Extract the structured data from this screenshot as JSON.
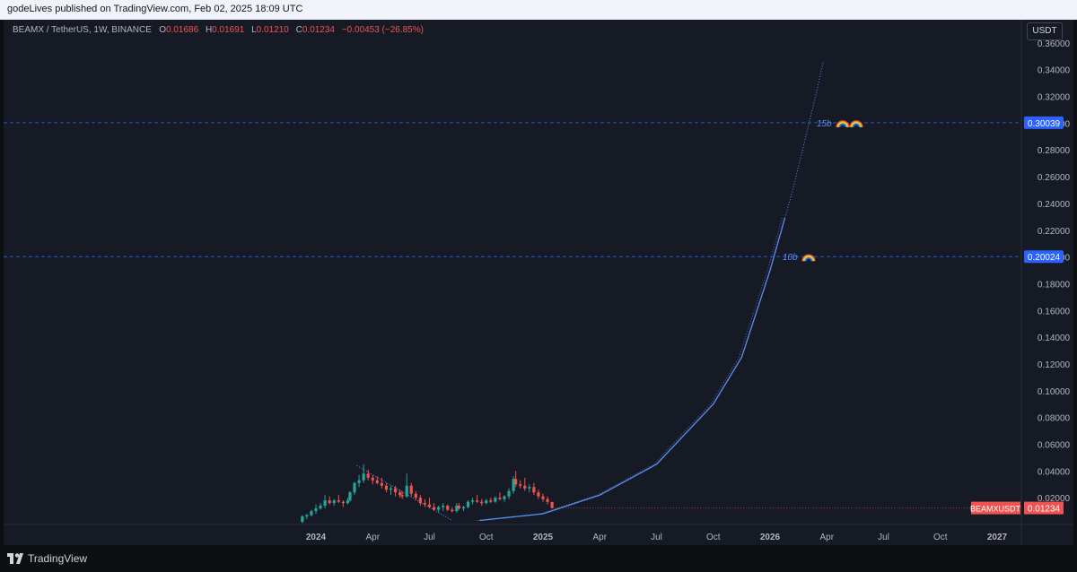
{
  "header": {
    "publish_text": "godeLives published on TradingView.com, Feb 02, 2025 18:09 UTC"
  },
  "legend": {
    "symbol": "BEAMX / TetherUS, 1W, BINANCE",
    "open_label": "O",
    "open": "0.01686",
    "high_label": "H",
    "high": "0.01691",
    "low_label": "L",
    "low": "0.01210",
    "close_label": "C",
    "close": "0.01234",
    "change": "−0.00453 (−26.85%)"
  },
  "currency_button": "USDT",
  "footer": {
    "brand": "TradingView"
  },
  "colors": {
    "up": "#26a69a",
    "down": "#ef5350",
    "line": "#5b8ff0",
    "badge": "#2962ff"
  },
  "chart_data": {
    "type": "candlestick",
    "title": "BEAMX / TetherUS, 1W, BINANCE",
    "ylim": [
      0.0,
      0.375
    ],
    "y_ticks": [
      "0.02000",
      "0.04000",
      "0.06000",
      "0.08000",
      "0.10000",
      "0.12000",
      "0.14000",
      "0.16000",
      "0.18000",
      "0.20000",
      "0.22000",
      "0.24000",
      "0.26000",
      "0.28000",
      "0.30000",
      "0.32000",
      "0.34000",
      "0.36000"
    ],
    "x_ticks": [
      {
        "label": "2024",
        "year_frac": 2024.0
      },
      {
        "label": "Apr",
        "year_frac": 2024.25
      },
      {
        "label": "Jul",
        "year_frac": 2024.5
      },
      {
        "label": "Oct",
        "year_frac": 2024.75
      },
      {
        "label": "2025",
        "year_frac": 2025.0
      },
      {
        "label": "Apr",
        "year_frac": 2025.25
      },
      {
        "label": "Jul",
        "year_frac": 2025.5
      },
      {
        "label": "Oct",
        "year_frac": 2025.75
      },
      {
        "label": "2026",
        "year_frac": 2026.0
      },
      {
        "label": "Apr",
        "year_frac": 2026.25
      },
      {
        "label": "Jul",
        "year_frac": 2026.5
      },
      {
        "label": "Oct",
        "year_frac": 2026.75
      },
      {
        "label": "2027",
        "year_frac": 2027.0
      }
    ],
    "horizontal_levels": [
      {
        "value": 0.30039,
        "label": "0.30039",
        "note": "15b"
      },
      {
        "value": 0.20024,
        "label": "0.20024",
        "note": "10b"
      }
    ],
    "last_price": {
      "symbol": "BEAMXUSDT",
      "value": 0.01234,
      "label": "0.01234"
    },
    "parabolic_curve": {
      "points": [
        [
          2024.72,
          0.003
        ],
        [
          2025.0,
          0.008
        ],
        [
          2025.25,
          0.022
        ],
        [
          2025.5,
          0.045
        ],
        [
          2025.75,
          0.09
        ],
        [
          2025.875,
          0.125
        ],
        [
          2026.0,
          0.19
        ],
        [
          2026.1,
          0.25
        ],
        [
          2026.2,
          0.32
        ],
        [
          2026.24,
          0.35
        ]
      ]
    },
    "downtrend_line": [
      [
        2024.18,
        0.044
      ],
      [
        2024.6,
        0.003
      ]
    ],
    "candles": [
      [
        2023.94,
        0.002,
        0.007,
        0.001,
        0.006
      ],
      [
        2023.96,
        0.006,
        0.008,
        0.004,
        0.007
      ],
      [
        2023.98,
        0.007,
        0.011,
        0.006,
        0.01
      ],
      [
        2024.0,
        0.01,
        0.015,
        0.008,
        0.012
      ],
      [
        2024.02,
        0.012,
        0.016,
        0.011,
        0.014
      ],
      [
        2024.04,
        0.014,
        0.022,
        0.012,
        0.018
      ],
      [
        2024.06,
        0.018,
        0.021,
        0.015,
        0.016
      ],
      [
        2024.08,
        0.016,
        0.019,
        0.014,
        0.018
      ],
      [
        2024.1,
        0.018,
        0.022,
        0.016,
        0.017
      ],
      [
        2024.12,
        0.017,
        0.018,
        0.013,
        0.016
      ],
      [
        2024.14,
        0.016,
        0.02,
        0.015,
        0.018
      ],
      [
        2024.15,
        0.018,
        0.025,
        0.017,
        0.024
      ],
      [
        2024.17,
        0.024,
        0.032,
        0.022,
        0.031
      ],
      [
        2024.19,
        0.031,
        0.037,
        0.028,
        0.033
      ],
      [
        2024.21,
        0.033,
        0.045,
        0.031,
        0.038
      ],
      [
        2024.23,
        0.038,
        0.041,
        0.033,
        0.035
      ],
      [
        2024.25,
        0.035,
        0.037,
        0.03,
        0.033
      ],
      [
        2024.27,
        0.033,
        0.036,
        0.03,
        0.031
      ],
      [
        2024.29,
        0.031,
        0.035,
        0.027,
        0.029
      ],
      [
        2024.31,
        0.029,
        0.031,
        0.024,
        0.026
      ],
      [
        2024.33,
        0.026,
        0.029,
        0.022,
        0.027
      ],
      [
        2024.35,
        0.027,
        0.029,
        0.021,
        0.024
      ],
      [
        2024.37,
        0.024,
        0.026,
        0.02,
        0.022
      ],
      [
        2024.38,
        0.022,
        0.025,
        0.019,
        0.021
      ],
      [
        2024.4,
        0.021,
        0.038,
        0.02,
        0.029
      ],
      [
        2024.42,
        0.029,
        0.031,
        0.021,
        0.023
      ],
      [
        2024.44,
        0.023,
        0.025,
        0.018,
        0.02
      ],
      [
        2024.46,
        0.02,
        0.022,
        0.014,
        0.016
      ],
      [
        2024.48,
        0.016,
        0.019,
        0.013,
        0.015
      ],
      [
        2024.5,
        0.015,
        0.02,
        0.012,
        0.013
      ],
      [
        2024.52,
        0.013,
        0.016,
        0.01,
        0.011
      ],
      [
        2024.54,
        0.011,
        0.014,
        0.009,
        0.013
      ],
      [
        2024.56,
        0.013,
        0.016,
        0.01,
        0.014
      ],
      [
        2024.58,
        0.014,
        0.015,
        0.01,
        0.011
      ],
      [
        2024.6,
        0.011,
        0.013,
        0.009,
        0.01
      ],
      [
        2024.62,
        0.01,
        0.016,
        0.009,
        0.014
      ],
      [
        2024.63,
        0.014,
        0.016,
        0.011,
        0.012
      ],
      [
        2024.65,
        0.012,
        0.014,
        0.01,
        0.013
      ],
      [
        2024.67,
        0.013,
        0.018,
        0.012,
        0.017
      ],
      [
        2024.69,
        0.017,
        0.02,
        0.015,
        0.018
      ],
      [
        2024.71,
        0.018,
        0.022,
        0.016,
        0.017
      ],
      [
        2024.73,
        0.017,
        0.019,
        0.014,
        0.016
      ],
      [
        2024.75,
        0.016,
        0.019,
        0.015,
        0.018
      ],
      [
        2024.77,
        0.018,
        0.02,
        0.016,
        0.017
      ],
      [
        2024.79,
        0.017,
        0.021,
        0.016,
        0.02
      ],
      [
        2024.81,
        0.02,
        0.024,
        0.018,
        0.019
      ],
      [
        2024.83,
        0.019,
        0.022,
        0.017,
        0.021
      ],
      [
        2024.85,
        0.021,
        0.027,
        0.019,
        0.025
      ],
      [
        2024.87,
        0.025,
        0.036,
        0.023,
        0.034
      ],
      [
        2024.88,
        0.034,
        0.04,
        0.028,
        0.03
      ],
      [
        2024.9,
        0.03,
        0.033,
        0.027,
        0.029
      ],
      [
        2024.92,
        0.029,
        0.035,
        0.025,
        0.027
      ],
      [
        2024.94,
        0.027,
        0.03,
        0.024,
        0.028
      ],
      [
        2024.96,
        0.028,
        0.031,
        0.022,
        0.024
      ],
      [
        2024.98,
        0.024,
        0.026,
        0.019,
        0.021
      ],
      [
        2025.0,
        0.021,
        0.023,
        0.017,
        0.019
      ],
      [
        2025.02,
        0.019,
        0.021,
        0.015,
        0.01686
      ],
      [
        2025.04,
        0.01686,
        0.01691,
        0.0121,
        0.01234
      ]
    ]
  }
}
